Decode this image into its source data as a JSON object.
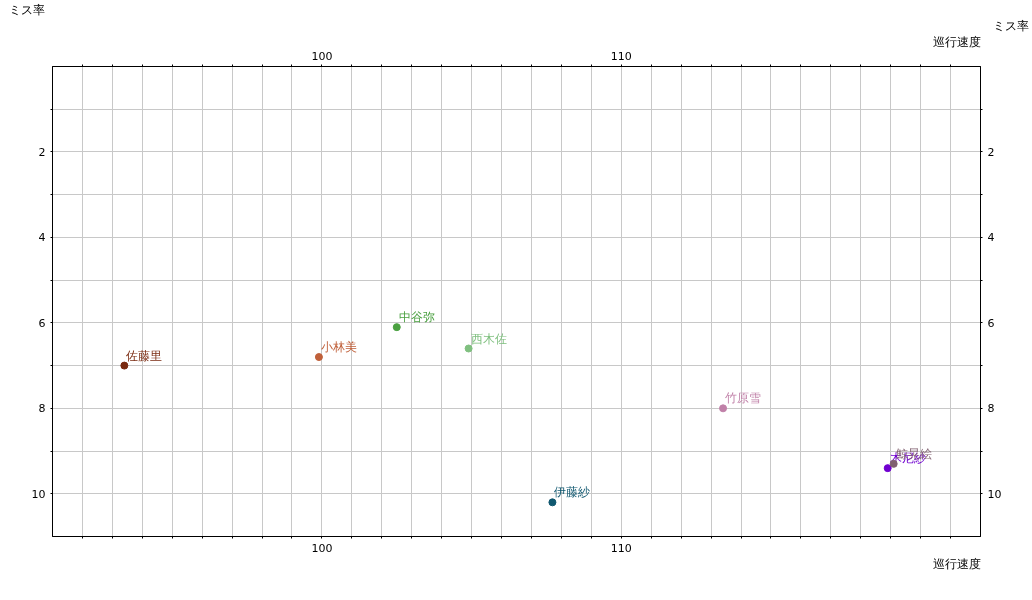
{
  "chart_data": {
    "type": "scatter",
    "xlabel": "巡行速度",
    "x2label": "巡行速度",
    "ylabel": "ミス率",
    "y2label": "ミス率",
    "xlim": [
      91,
      122
    ],
    "x2lim": [
      91,
      122
    ],
    "ylim": [
      11,
      0
    ],
    "y2lim": [
      11,
      0
    ],
    "xticks": [
      {
        "value": 92,
        "label": null
      },
      {
        "value": 93,
        "label": null
      },
      {
        "value": 94,
        "label": null
      },
      {
        "value": 95,
        "label": null
      },
      {
        "value": 96,
        "label": null
      },
      {
        "value": 97,
        "label": null
      },
      {
        "value": 98,
        "label": null
      },
      {
        "value": 99,
        "label": null
      },
      100,
      {
        "value": 101,
        "label": null
      },
      {
        "value": 102,
        "label": null
      },
      {
        "value": 103,
        "label": null
      },
      {
        "value": 104,
        "label": null
      },
      {
        "value": 105,
        "label": null
      },
      {
        "value": 106,
        "label": null
      },
      {
        "value": 107,
        "label": null
      },
      {
        "value": 108,
        "label": null
      },
      {
        "value": 109,
        "label": null
      },
      110,
      {
        "value": 111,
        "label": null
      },
      {
        "value": 112,
        "label": null
      },
      {
        "value": 113,
        "label": null
      },
      {
        "value": 114,
        "label": null
      },
      {
        "value": 115,
        "label": null
      },
      {
        "value": 116,
        "label": null
      },
      {
        "value": 117,
        "label": null
      },
      {
        "value": 118,
        "label": null
      },
      {
        "value": 119,
        "label": null
      },
      {
        "value": 120,
        "label": null
      },
      {
        "value": 121,
        "label": null
      }
    ],
    "x2ticks": [
      {
        "value": 92,
        "label": null
      },
      {
        "value": 93,
        "label": null
      },
      {
        "value": 94,
        "label": null
      },
      {
        "value": 95,
        "label": null
      },
      {
        "value": 96,
        "label": null
      },
      {
        "value": 97,
        "label": null
      },
      {
        "value": 98,
        "label": null
      },
      {
        "value": 99,
        "label": null
      },
      100,
      {
        "value": 101,
        "label": null
      },
      {
        "value": 102,
        "label": null
      },
      {
        "value": 103,
        "label": null
      },
      {
        "value": 104,
        "label": null
      },
      {
        "value": 105,
        "label": null
      },
      {
        "value": 106,
        "label": null
      },
      {
        "value": 107,
        "label": null
      },
      {
        "value": 108,
        "label": null
      },
      {
        "value": 109,
        "label": null
      },
      110,
      {
        "value": 111,
        "label": null
      },
      {
        "value": 112,
        "label": null
      },
      {
        "value": 113,
        "label": null
      },
      {
        "value": 114,
        "label": null
      },
      {
        "value": 115,
        "label": null
      },
      {
        "value": 116,
        "label": null
      },
      {
        "value": 117,
        "label": null
      },
      {
        "value": 118,
        "label": null
      },
      {
        "value": 119,
        "label": null
      },
      {
        "value": 120,
        "label": null
      },
      {
        "value": 121,
        "label": null
      }
    ],
    "yticks": [
      {
        "value": 1,
        "label": null
      },
      2,
      {
        "value": 3,
        "label": null
      },
      4,
      {
        "value": 5,
        "label": null
      },
      6,
      {
        "value": 7,
        "label": null
      },
      8,
      {
        "value": 9,
        "label": null
      },
      10
    ],
    "y2ticks": [
      {
        "value": 1,
        "label": null
      },
      2,
      {
        "value": 3,
        "label": null
      },
      4,
      {
        "value": 5,
        "label": null
      },
      6,
      {
        "value": 7,
        "label": null
      },
      8,
      {
        "value": 9,
        "label": null
      },
      10
    ],
    "grid": true,
    "marker": "circle",
    "series": [
      {
        "name": "佐藤里",
        "color": "#7a2a10",
        "x": [
          93.4
        ],
        "values": [
          7.0
        ]
      },
      {
        "name": "小林美",
        "color": "#c0603a",
        "x": [
          99.9
        ],
        "values": [
          6.8
        ]
      },
      {
        "name": "中谷弥",
        "color": "#4aa040",
        "x": [
          102.5
        ],
        "values": [
          6.1
        ]
      },
      {
        "name": "西木佐",
        "color": "#80c080",
        "x": [
          104.9
        ],
        "values": [
          6.6
        ]
      },
      {
        "name": "竹原雪",
        "color": "#c080a8",
        "x": [
          113.4
        ],
        "values": [
          8.0
        ]
      },
      {
        "name": "伊藤紗",
        "color": "#105870",
        "x": [
          107.7
        ],
        "values": [
          10.2
        ]
      },
      {
        "name": "木尼紗",
        "color": "#7000d0",
        "x": [
          118.9
        ],
        "values": [
          9.4
        ]
      },
      {
        "name": "鯨晃絵",
        "color": "#806070",
        "x": [
          119.1
        ],
        "values": [
          9.3
        ]
      }
    ]
  }
}
